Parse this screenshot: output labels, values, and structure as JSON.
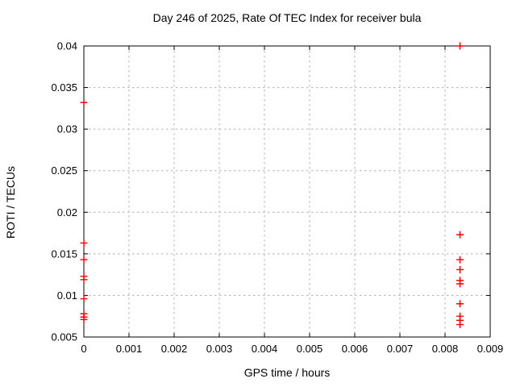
{
  "chart_data": {
    "type": "scatter",
    "title": "Day 246 of 2025, Rate Of TEC Index for receiver bula",
    "xlabel": "GPS time / hours",
    "ylabel": "ROTI / TECUs",
    "xlim": [
      0,
      0.009
    ],
    "ylim": [
      0.005,
      0.04
    ],
    "xticks": [
      0,
      0.001,
      0.002,
      0.003,
      0.004,
      0.005,
      0.006,
      0.007,
      0.008,
      0.009
    ],
    "xtick_labels": [
      "0",
      "0.001",
      "0.002",
      "0.003",
      "0.004",
      "0.005",
      "0.006",
      "0.007",
      "0.008",
      "0.009"
    ],
    "yticks": [
      0.005,
      0.01,
      0.015,
      0.02,
      0.025,
      0.03,
      0.035,
      0.04
    ],
    "ytick_labels": [
      "0.005",
      "0.01",
      "0.015",
      "0.02",
      "0.025",
      "0.03",
      "0.035",
      "0.04"
    ],
    "grid": true,
    "legend": "none",
    "marker": "plus",
    "marker_color": "#ff0000",
    "grid_color": "#b0b0b0",
    "axis_color": "#000000",
    "series": [
      {
        "name": "ROTI",
        "points": [
          {
            "x": 0,
            "y": 0.0332
          },
          {
            "x": 0,
            "y": 0.0163
          },
          {
            "x": 0,
            "y": 0.0143
          },
          {
            "x": 0,
            "y": 0.0123
          },
          {
            "x": 0,
            "y": 0.0119
          },
          {
            "x": 0,
            "y": 0.0096
          },
          {
            "x": 0,
            "y": 0.0078
          },
          {
            "x": 0,
            "y": 0.0074
          },
          {
            "x": 0,
            "y": 0.0071
          },
          {
            "x": 0.00833,
            "y": 0.04
          },
          {
            "x": 0.00833,
            "y": 0.0173
          },
          {
            "x": 0.00833,
            "y": 0.0143
          },
          {
            "x": 0.00833,
            "y": 0.0131
          },
          {
            "x": 0.00833,
            "y": 0.0118
          },
          {
            "x": 0.00833,
            "y": 0.0114
          },
          {
            "x": 0.00833,
            "y": 0.009
          },
          {
            "x": 0.00833,
            "y": 0.0075
          },
          {
            "x": 0.00833,
            "y": 0.007
          },
          {
            "x": 0.00833,
            "y": 0.0065
          }
        ]
      }
    ]
  }
}
